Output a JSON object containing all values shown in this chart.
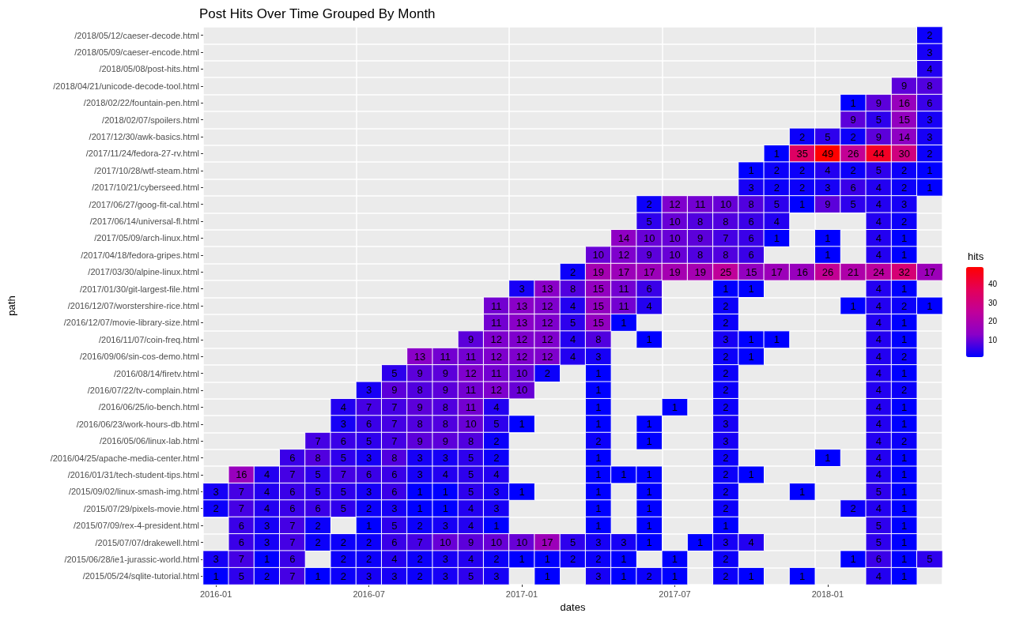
{
  "chart_data": {
    "type": "heatmap",
    "title": "Post Hits Over Time Grouped By Month",
    "xlabel": "dates",
    "ylabel": "path",
    "legend_title": "hits",
    "categories": [
      "2016-01",
      null,
      null,
      null,
      null,
      null,
      "2016-07",
      null,
      null,
      null,
      null,
      null,
      "2017-01",
      null,
      null,
      null,
      null,
      null,
      "2017-07",
      null,
      null,
      null,
      null,
      null,
      "2018-01",
      null,
      null,
      null,
      null
    ],
    "y_categories": [
      "/2018/05/12/caeser-decode.html",
      "/2018/05/09/caeser-encode.html",
      "/2018/05/08/post-hits.html",
      "/2018/04/21/unicode-decode-tool.html",
      "/2018/02/22/fountain-pen.html",
      "/2018/02/07/spoilers.html",
      "/2017/12/30/awk-basics.html",
      "/2017/11/24/fedora-27-rv.html",
      "/2017/10/28/wtf-steam.html",
      "/2017/10/21/cyberseed.html",
      "/2017/06/27/goog-fit-cal.html",
      "/2017/06/14/universal-fl.html",
      "/2017/05/09/arch-linux.html",
      "/2017/04/18/fedora-gripes.html",
      "/2017/03/30/alpine-linux.html",
      "/2017/01/30/git-largest-file.html",
      "/2016/12/07/worstershire-rice.html",
      "/2016/12/07/movie-library-size.html",
      "/2016/11/07/coin-freq.html",
      "/2016/09/06/sin-cos-demo.html",
      "/2016/08/14/firetv.html",
      "/2016/07/22/tv-complain.html",
      "/2016/06/25/io-bench.html",
      "/2016/06/23/work-hours-db.html",
      "/2016/05/06/linux-lab.html",
      "/2016/04/25/apache-media-center.html",
      "/2016/01/31/tech-student-tips.html",
      "/2015/09/02/linux-smash-img.html",
      "/2015/07/29/pixels-movie.html",
      "/2015/07/09/rex-4-president.html",
      "/2015/07/07/drakewell.html",
      "/2015/06/28/ie1-jurassic-world.html",
      "/2015/05/24/sqlite-tutorial.html"
    ],
    "cells": [
      [
        null,
        null,
        null,
        null,
        null,
        null,
        null,
        null,
        null,
        null,
        null,
        null,
        null,
        null,
        null,
        null,
        null,
        null,
        null,
        null,
        null,
        null,
        null,
        null,
        null,
        null,
        null,
        null,
        2
      ],
      [
        null,
        null,
        null,
        null,
        null,
        null,
        null,
        null,
        null,
        null,
        null,
        null,
        null,
        null,
        null,
        null,
        null,
        null,
        null,
        null,
        null,
        null,
        null,
        null,
        null,
        null,
        null,
        null,
        3
      ],
      [
        null,
        null,
        null,
        null,
        null,
        null,
        null,
        null,
        null,
        null,
        null,
        null,
        null,
        null,
        null,
        null,
        null,
        null,
        null,
        null,
        null,
        null,
        null,
        null,
        null,
        null,
        null,
        null,
        4
      ],
      [
        null,
        null,
        null,
        null,
        null,
        null,
        null,
        null,
        null,
        null,
        null,
        null,
        null,
        null,
        null,
        null,
        null,
        null,
        null,
        null,
        null,
        null,
        null,
        null,
        null,
        null,
        null,
        9,
        8
      ],
      [
        null,
        null,
        null,
        null,
        null,
        null,
        null,
        null,
        null,
        null,
        null,
        null,
        null,
        null,
        null,
        null,
        null,
        null,
        null,
        null,
        null,
        null,
        null,
        null,
        null,
        1,
        9,
        16,
        6
      ],
      [
        null,
        null,
        null,
        null,
        null,
        null,
        null,
        null,
        null,
        null,
        null,
        null,
        null,
        null,
        null,
        null,
        null,
        null,
        null,
        null,
        null,
        null,
        null,
        null,
        null,
        9,
        5,
        15,
        3
      ],
      [
        null,
        null,
        null,
        null,
        null,
        null,
        null,
        null,
        null,
        null,
        null,
        null,
        null,
        null,
        null,
        null,
        null,
        null,
        null,
        null,
        null,
        null,
        null,
        2,
        5,
        2,
        9,
        14,
        3
      ],
      [
        null,
        null,
        null,
        null,
        null,
        null,
        null,
        null,
        null,
        null,
        null,
        null,
        null,
        null,
        null,
        null,
        null,
        null,
        null,
        null,
        null,
        null,
        1,
        35,
        49,
        26,
        44,
        30,
        2
      ],
      [
        null,
        null,
        null,
        null,
        null,
        null,
        null,
        null,
        null,
        null,
        null,
        null,
        null,
        null,
        null,
        null,
        null,
        null,
        null,
        null,
        null,
        1,
        2,
        2,
        4,
        2,
        5,
        2,
        1
      ],
      [
        null,
        null,
        null,
        null,
        null,
        null,
        null,
        null,
        null,
        null,
        null,
        null,
        null,
        null,
        null,
        null,
        null,
        null,
        null,
        null,
        null,
        3,
        2,
        2,
        3,
        6,
        4,
        2,
        1
      ],
      [
        null,
        null,
        null,
        null,
        null,
        null,
        null,
        null,
        null,
        null,
        null,
        null,
        null,
        null,
        null,
        null,
        null,
        2,
        12,
        11,
        10,
        8,
        5,
        1,
        9,
        5,
        4,
        3,
        null
      ],
      [
        null,
        null,
        null,
        null,
        null,
        null,
        null,
        null,
        null,
        null,
        null,
        null,
        null,
        null,
        null,
        null,
        null,
        5,
        10,
        8,
        8,
        6,
        4,
        null,
        null,
        null,
        4,
        2,
        null
      ],
      [
        null,
        null,
        null,
        null,
        null,
        null,
        null,
        null,
        null,
        null,
        null,
        null,
        null,
        null,
        null,
        null,
        14,
        10,
        10,
        9,
        7,
        6,
        1,
        null,
        1,
        null,
        4,
        1,
        null
      ],
      [
        null,
        null,
        null,
        null,
        null,
        null,
        null,
        null,
        null,
        null,
        null,
        null,
        null,
        null,
        null,
        10,
        12,
        9,
        10,
        8,
        8,
        6,
        null,
        null,
        1,
        null,
        4,
        1,
        null
      ],
      [
        null,
        null,
        null,
        null,
        null,
        null,
        null,
        null,
        null,
        null,
        null,
        null,
        null,
        null,
        2,
        19,
        17,
        17,
        19,
        19,
        25,
        15,
        17,
        16,
        26,
        21,
        24,
        32,
        17
      ],
      [
        null,
        null,
        null,
        null,
        null,
        null,
        null,
        null,
        null,
        null,
        null,
        null,
        3,
        13,
        8,
        15,
        11,
        6,
        null,
        null,
        1,
        1,
        null,
        null,
        null,
        null,
        4,
        1,
        null
      ],
      [
        null,
        null,
        null,
        null,
        null,
        null,
        null,
        null,
        null,
        null,
        null,
        11,
        13,
        12,
        4,
        15,
        11,
        4,
        null,
        null,
        2,
        null,
        null,
        null,
        null,
        1,
        4,
        2,
        1
      ],
      [
        null,
        null,
        null,
        null,
        null,
        null,
        null,
        null,
        null,
        null,
        null,
        11,
        13,
        12,
        5,
        15,
        1,
        null,
        null,
        null,
        2,
        null,
        null,
        null,
        null,
        null,
        4,
        1,
        null
      ],
      [
        null,
        null,
        null,
        null,
        null,
        null,
        null,
        null,
        null,
        null,
        9,
        12,
        12,
        12,
        4,
        8,
        null,
        1,
        null,
        null,
        3,
        1,
        1,
        null,
        null,
        null,
        4,
        1,
        null
      ],
      [
        null,
        null,
        null,
        null,
        null,
        null,
        null,
        null,
        13,
        11,
        11,
        12,
        12,
        12,
        4,
        3,
        null,
        null,
        null,
        null,
        2,
        1,
        null,
        null,
        null,
        null,
        4,
        2,
        null
      ],
      [
        null,
        null,
        null,
        null,
        null,
        null,
        null,
        5,
        9,
        9,
        12,
        11,
        10,
        2,
        null,
        1,
        null,
        null,
        null,
        null,
        2,
        null,
        null,
        null,
        null,
        null,
        4,
        1,
        null
      ],
      [
        null,
        null,
        null,
        null,
        null,
        null,
        3,
        9,
        8,
        9,
        11,
        12,
        10,
        null,
        null,
        1,
        null,
        null,
        null,
        null,
        2,
        null,
        null,
        null,
        null,
        null,
        4,
        2,
        null
      ],
      [
        null,
        null,
        null,
        null,
        null,
        4,
        7,
        7,
        9,
        8,
        11,
        4,
        null,
        null,
        null,
        1,
        null,
        null,
        1,
        null,
        2,
        null,
        null,
        null,
        null,
        null,
        4,
        1,
        null
      ],
      [
        null,
        null,
        null,
        null,
        null,
        3,
        6,
        7,
        8,
        8,
        10,
        5,
        1,
        null,
        null,
        1,
        null,
        1,
        null,
        null,
        3,
        null,
        null,
        null,
        null,
        null,
        4,
        1,
        null
      ],
      [
        null,
        null,
        null,
        null,
        7,
        6,
        5,
        7,
        9,
        9,
        8,
        2,
        null,
        null,
        null,
        2,
        null,
        1,
        null,
        null,
        3,
        null,
        null,
        null,
        null,
        null,
        4,
        2,
        null
      ],
      [
        null,
        null,
        null,
        6,
        8,
        5,
        3,
        8,
        3,
        3,
        5,
        2,
        null,
        null,
        null,
        1,
        null,
        null,
        null,
        null,
        2,
        null,
        null,
        null,
        1,
        null,
        4,
        1,
        null
      ],
      [
        null,
        16,
        4,
        7,
        5,
        7,
        6,
        6,
        3,
        4,
        5,
        4,
        null,
        null,
        null,
        1,
        1,
        1,
        null,
        null,
        2,
        1,
        null,
        null,
        null,
        null,
        4,
        1,
        null
      ],
      [
        3,
        7,
        4,
        6,
        5,
        5,
        3,
        6,
        1,
        1,
        5,
        3,
        1,
        null,
        null,
        1,
        null,
        1,
        null,
        null,
        2,
        null,
        null,
        1,
        null,
        null,
        5,
        1,
        null
      ],
      [
        2,
        7,
        4,
        6,
        6,
        5,
        2,
        3,
        1,
        1,
        4,
        3,
        null,
        null,
        null,
        1,
        null,
        1,
        null,
        null,
        2,
        null,
        null,
        null,
        null,
        2,
        4,
        1,
        null
      ],
      [
        null,
        6,
        3,
        7,
        2,
        null,
        1,
        5,
        2,
        3,
        4,
        1,
        null,
        null,
        null,
        1,
        null,
        1,
        null,
        null,
        1,
        null,
        null,
        null,
        null,
        null,
        5,
        1,
        null
      ],
      [
        null,
        6,
        3,
        7,
        2,
        2,
        2,
        6,
        7,
        10,
        9,
        10,
        10,
        17,
        5,
        3,
        3,
        1,
        null,
        1,
        3,
        4,
        null,
        null,
        null,
        null,
        5,
        1,
        null
      ],
      [
        3,
        7,
        1,
        6,
        null,
        2,
        2,
        4,
        2,
        3,
        4,
        2,
        1,
        1,
        2,
        2,
        1,
        null,
        1,
        null,
        2,
        null,
        null,
        null,
        null,
        1,
        6,
        1,
        5
      ],
      [
        1,
        5,
        2,
        7,
        1,
        2,
        3,
        3,
        2,
        3,
        5,
        3,
        null,
        1,
        null,
        3,
        1,
        2,
        1,
        null,
        2,
        1,
        null,
        1,
        null,
        null,
        4,
        1,
        null
      ]
    ],
    "clim": [
      1,
      49
    ],
    "cticks": [
      10,
      20,
      30,
      40
    ],
    "data_labels": true,
    "grid": true
  }
}
